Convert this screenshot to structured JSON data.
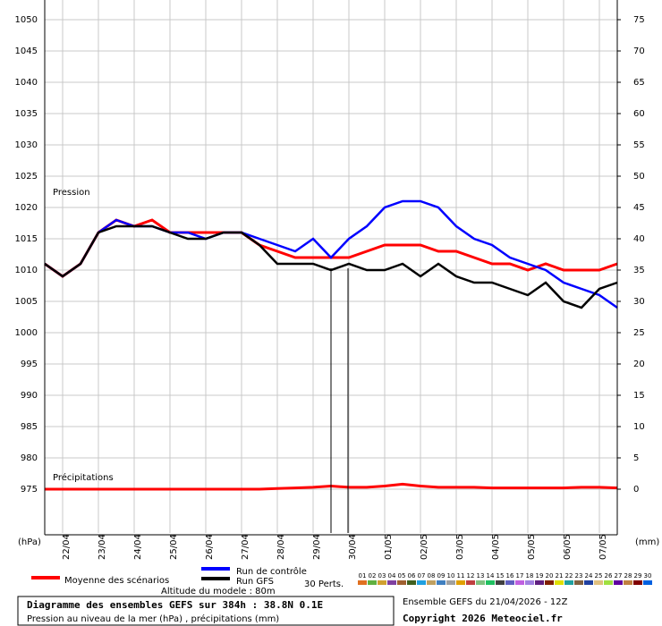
{
  "chart_data": {
    "type": "line",
    "title": "Diagramme des ensembles GEFS sur 384h : 38.8N 0.1E",
    "subtitle": "Pression au niveau de la mer (hPa) , précipitations (mm)",
    "annotations": {
      "pressure": "Pression",
      "precip": "Précipitations",
      "y_unit": "(hPa)",
      "y2_unit": "(mm)",
      "altitude": "Altitude du modele : 80m",
      "run": "Ensemble GEFS du 21/04/2026 - 12Z",
      "copyright": "Copyright 2026 Meteociel.fr",
      "perts": "30 Perts."
    },
    "categories": [
      null,
      "22/04",
      null,
      "23/04",
      null,
      "24/04",
      null,
      "25/04",
      null,
      "26/04",
      null,
      "27/04",
      null,
      "28/04",
      null,
      "29/04",
      null,
      "30/04",
      null,
      "01/05",
      null,
      "02/05",
      null,
      "03/05",
      null,
      "04/05",
      null,
      "05/05",
      null,
      "06/05",
      null,
      "07/05",
      null
    ],
    "series": [
      {
        "name": "Moyenne des scénarios",
        "color": "#ff0000",
        "values": [
          1011,
          1009,
          1011,
          1016,
          1018,
          1017,
          1018,
          1016,
          1016,
          1016,
          1016,
          1016,
          1014,
          1013,
          1012,
          1012,
          1012,
          1012,
          1013,
          1014,
          1014,
          1014,
          1013,
          1013,
          1012,
          1011,
          1011,
          1010,
          1011,
          1010,
          1010,
          1010,
          1011
        ]
      },
      {
        "name": "Run de contrôle",
        "color": "#0000ff",
        "values": [
          1011,
          1009,
          1011,
          1016,
          1018,
          1017,
          1017,
          1016,
          1016,
          1015,
          1016,
          1016,
          1015,
          1014,
          1013,
          1015,
          1012,
          1015,
          1017,
          1020,
          1021,
          1021,
          1020,
          1017,
          1015,
          1014,
          1012,
          1011,
          1010,
          1008,
          1007,
          1006,
          1004
        ]
      },
      {
        "name": "Run GFS",
        "color": "#000000",
        "values": [
          1011,
          1009,
          1011,
          1016,
          1017,
          1017,
          1017,
          1016,
          1015,
          1015,
          1016,
          1016,
          1014,
          1011,
          1011,
          1011,
          1010,
          1011,
          1010,
          1010,
          1011,
          1009,
          1011,
          1009,
          1008,
          1008,
          1007,
          1006,
          1008,
          1005,
          1004,
          1007,
          1008
        ]
      },
      {
        "color": "#ff0000",
        "axis": "y2",
        "values": [
          0,
          0,
          0,
          0,
          0,
          0,
          0,
          0,
          0,
          0,
          0,
          0,
          0,
          0.1,
          0.2,
          0.3,
          0.5,
          0.3,
          0.3,
          0.5,
          0.8,
          0.5,
          0.3,
          0.3,
          0.3,
          0.2,
          0.2,
          0.2,
          0.2,
          0.2,
          0.3,
          0.3,
          0.2
        ]
      }
    ],
    "perturbations": [
      {
        "name": "01",
        "color": "#e07020"
      },
      {
        "name": "02",
        "color": "#60b040"
      },
      {
        "name": "03",
        "color": "#d0a030"
      },
      {
        "name": "04",
        "color": "#8040a0"
      },
      {
        "name": "05",
        "color": "#a06030"
      },
      {
        "name": "06",
        "color": "#406020"
      },
      {
        "name": "07",
        "color": "#20a0e0"
      },
      {
        "name": "08",
        "color": "#c0a060"
      },
      {
        "name": "09",
        "color": "#4080c0"
      },
      {
        "name": "10",
        "color": "#a0a0a0"
      },
      {
        "name": "11",
        "color": "#e0a000"
      },
      {
        "name": "12",
        "color": "#c04040"
      },
      {
        "name": "13",
        "color": "#80c080"
      },
      {
        "name": "14",
        "color": "#20c060"
      },
      {
        "name": "15",
        "color": "#404040"
      },
      {
        "name": "16",
        "color": "#6060c0"
      },
      {
        "name": "17",
        "color": "#c060e0"
      },
      {
        "name": "18",
        "color": "#a080e0"
      },
      {
        "name": "19",
        "color": "#602080"
      },
      {
        "name": "20",
        "color": "#802000"
      },
      {
        "name": "21",
        "color": "#e0e000"
      },
      {
        "name": "22",
        "color": "#20a0a0"
      },
      {
        "name": "23",
        "color": "#806040"
      },
      {
        "name": "24",
        "color": "#2040a0"
      },
      {
        "name": "25",
        "color": "#e0c080"
      },
      {
        "name": "26",
        "color": "#a0e040"
      },
      {
        "name": "27",
        "color": "#6000a0"
      },
      {
        "name": "28",
        "color": "#c08040"
      },
      {
        "name": "29",
        "color": "#800000"
      },
      {
        "name": "30",
        "color": "#0060e0"
      }
    ],
    "ylim": [
      968,
      1053
    ],
    "yticks": [
      975,
      980,
      985,
      990,
      995,
      1000,
      1005,
      1010,
      1015,
      1020,
      1025,
      1030,
      1035,
      1040,
      1045,
      1050
    ],
    "y2lim": [
      -7,
      78
    ],
    "y2ticks": [
      0,
      5,
      10,
      15,
      20,
      25,
      30,
      35,
      40,
      45,
      50,
      55,
      60,
      65,
      70,
      75
    ],
    "grid": true
  }
}
